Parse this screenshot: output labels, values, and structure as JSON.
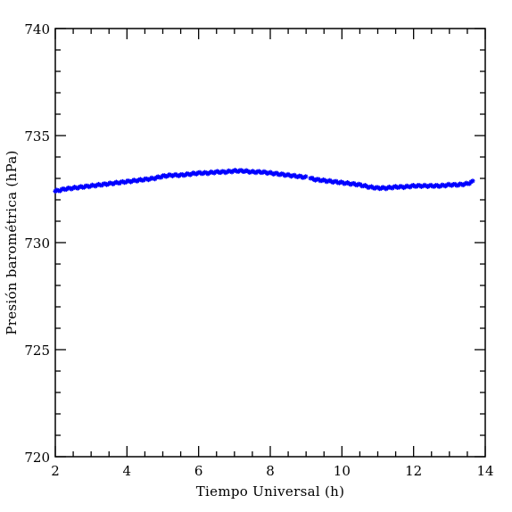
{
  "chart_data": {
    "type": "scatter",
    "title": "",
    "xlabel": "Tiempo Universal (h)",
    "ylabel": "Presión barométrica (hPa)",
    "xlim": [
      2,
      14
    ],
    "ylim": [
      720,
      740
    ],
    "xticks": [
      2,
      4,
      6,
      8,
      10,
      12,
      14
    ],
    "xtick_labels": [
      "2",
      "4",
      "6",
      "8",
      "10",
      "12",
      "14"
    ],
    "yticks": [
      720,
      725,
      730,
      735,
      740
    ],
    "ytick_labels": [
      "720",
      "725",
      "730",
      "735",
      "740"
    ],
    "grid": false,
    "marker_color": "#0000ff",
    "series": [
      {
        "x": [
          2.0,
          2.25,
          2.5,
          2.75,
          3.0,
          3.25,
          3.5,
          3.75,
          4.0,
          4.25,
          4.5,
          4.75,
          5.0,
          5.25,
          5.5,
          5.75,
          6.0,
          6.25,
          6.5,
          6.75,
          7.0,
          7.25,
          7.5,
          7.75,
          8.0,
          8.25,
          8.5,
          8.75,
          9.0,
          9.25,
          9.5,
          9.75,
          10.0,
          10.25,
          10.5,
          10.75,
          11.0,
          11.25,
          11.5,
          11.75,
          12.0,
          12.25,
          12.5,
          12.75,
          13.0,
          13.25,
          13.5,
          13.65
        ],
        "y": [
          732.4,
          732.5,
          732.55,
          732.6,
          732.65,
          732.7,
          732.75,
          732.8,
          732.85,
          732.9,
          732.95,
          733.0,
          733.1,
          733.15,
          733.15,
          733.2,
          733.25,
          733.25,
          733.3,
          733.3,
          733.35,
          733.35,
          733.3,
          733.3,
          733.25,
          733.2,
          733.15,
          733.1,
          733.05,
          732.95,
          732.9,
          732.85,
          732.8,
          732.75,
          732.7,
          732.6,
          732.55,
          732.55,
          732.6,
          732.6,
          732.65,
          732.65,
          732.65,
          732.65,
          732.7,
          732.7,
          732.75,
          732.85
        ]
      }
    ]
  }
}
